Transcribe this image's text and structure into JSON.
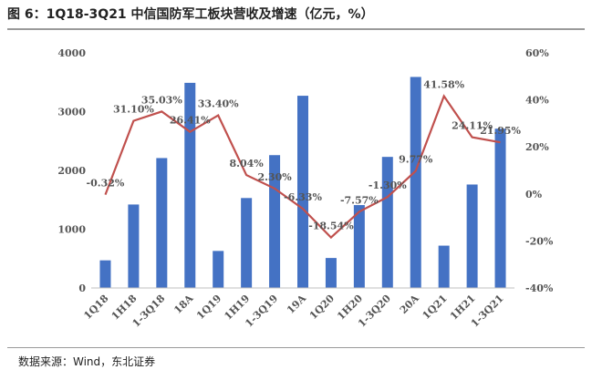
{
  "title": "图 6：1Q18-3Q21 中信国防军工板块营收及增速（亿元，%）",
  "source": "数据来源：Wind，东北证券",
  "colors": {
    "bar": "#4472c4",
    "line": "#c0504d"
  },
  "chart_data": {
    "type": "bar",
    "categories": [
      "1Q18",
      "1H18",
      "1-3Q18",
      "18A",
      "1Q19",
      "1H19",
      "1-3Q19",
      "19A",
      "1Q20",
      "1H20",
      "1-3Q20",
      "20A",
      "1Q21",
      "1H21",
      "1-3Q21"
    ],
    "series": [
      {
        "axis": "left",
        "type": "bar",
        "values": [
          470,
          1420,
          2210,
          3490,
          630,
          1530,
          2260,
          3270,
          510,
          1410,
          2230,
          3590,
          720,
          1760,
          2710
        ]
      },
      {
        "axis": "right",
        "type": "line",
        "values": [
          -0.32,
          31.1,
          35.03,
          26.41,
          33.4,
          8.04,
          2.3,
          -6.33,
          -18.54,
          -7.57,
          -1.3,
          9.77,
          41.58,
          24.11,
          21.95
        ],
        "labels": [
          "-0.32%",
          "31.10%",
          "35.03%",
          "26.41%",
          "33.40%",
          "8.04%",
          "2.30%",
          "-6.33%",
          "-18.54%",
          "-7.57%",
          "-1.30%",
          "9.77%",
          "41.58%",
          "24.11%",
          "21.95%"
        ]
      }
    ],
    "ylim_left": [
      0,
      4000
    ],
    "yticks_left": [
      "0",
      "1000",
      "2000",
      "3000",
      "4000"
    ],
    "ylim_right": [
      -40,
      60
    ],
    "yticks_right": [
      "-40%",
      "-20%",
      "0%",
      "20%",
      "40%",
      "60%"
    ],
    "grid": false,
    "legend": "none"
  }
}
